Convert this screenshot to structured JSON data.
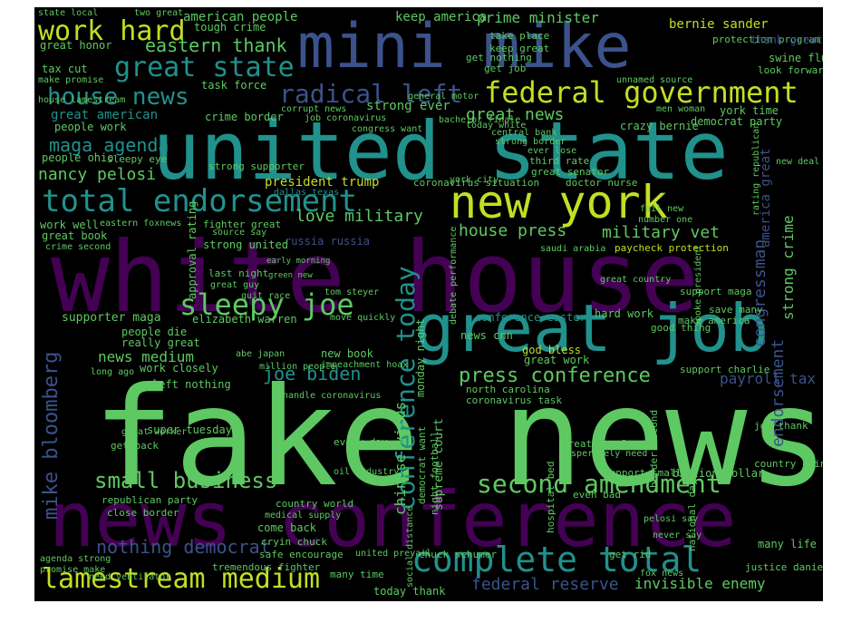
{
  "palette": {
    "background": "#000000",
    "frame": "#ffffff",
    "purple_dark": "#440154",
    "indigo": "#3b528b",
    "teal": "#21918c",
    "green": "#5ec962",
    "yellow_green": "#c2df23",
    "yellow": "#fde725",
    "muted": "#2c3e66"
  },
  "words": [
    "fake news",
    "white house",
    "news conference",
    "united state",
    "mini mike",
    "great job",
    "new york",
    "complete total",
    "total endorsement",
    "federal government",
    "lamestream medium",
    "great state",
    "second amendment",
    "sleepy joe",
    "house news",
    "radical left",
    "work hard",
    "small business",
    "press conference",
    "eastern thank",
    "great news",
    "maga agenda",
    "nancy pelosi",
    "conference today",
    "mike bloomberg",
    "house press",
    "military vet",
    "love military",
    "joe biden",
    "nothing democrat",
    "great american",
    "federal reserve",
    "invisible enemy",
    "strong ever",
    "president trump",
    "crazy bernie",
    "bernie sander",
    "news medium",
    "work closely",
    "people ohio",
    "chinese virus",
    "supreme court",
    "new book",
    "god bless",
    "great work",
    "news cnn",
    "crime border",
    "prime minister",
    "american people",
    "keep america",
    "congressman",
    "endorsement",
    "strong crime",
    "payroll tax",
    "america great",
    "york time",
    "democrat party",
    "swine flu",
    "tax cut",
    "task force",
    "great honor",
    "people work",
    "strong supporter",
    "dallas texas",
    "coronavirus situation",
    "doctor nurse",
    "third rate",
    "great senator",
    "people die",
    "really great",
    "republican party",
    "come back",
    "cryin chuck",
    "safe encourage",
    "tremendous fighter",
    "many time",
    "need ventilator",
    "chuck schumer",
    "united prevail",
    "north carolina",
    "coronavirus task",
    "today thank",
    "get rid",
    "justice daniel",
    "support charlie",
    "make america",
    "save many",
    "good thing",
    "hard work",
    "support maga",
    "paycheck protection",
    "saudi arabia",
    "russia russia",
    "strong united",
    "last night",
    "great guy",
    "quit race",
    "tom steyer",
    "elizabeth warren",
    "supporter maga",
    "conference eastern",
    "super tuesday",
    "left nothing",
    "impeachment hoax",
    "handle coronavirus",
    "every day",
    "oil industry",
    "great people",
    "billion dollar",
    "support small",
    "joe thank",
    "country china",
    "many life",
    "medical supply",
    "country world",
    "close border",
    "agenda strong",
    "promise make",
    "great book",
    "crime second",
    "work well",
    "eastern foxnews",
    "fighter great",
    "source say",
    "number one",
    "fail new",
    "new deal",
    "look forward",
    "protection program",
    "thank great",
    "central bank",
    "strong border",
    "ever lose",
    "bachelor finale",
    "today white",
    "job coronavirus",
    "congress want",
    "corrupt news",
    "tough crime",
    "two great",
    "state local",
    "take place",
    "keep great",
    "get nothing",
    "get job",
    "general motor",
    "men woman",
    "unnamed source",
    "great senator",
    "approval rating",
    "monday night",
    "night football",
    "democrat want",
    "hospital bed",
    "border second",
    "national day",
    "even bad",
    "fox news",
    "pelosi say",
    "never say",
    "long ago",
    "great worker",
    "get back",
    "alex gitta",
    "nothing happen",
    "thing happen",
    "social distance",
    "york city",
    "spoke president",
    "make promise",
    "house lamestream",
    "rating republican",
    "sleepy eye",
    "abe japan",
    "million people",
    "early morning",
    "green new",
    "debate performance",
    "move quickly",
    "great country",
    "number one",
    "desperately need",
    "thank",
    "chuck",
    "security"
  ]
}
